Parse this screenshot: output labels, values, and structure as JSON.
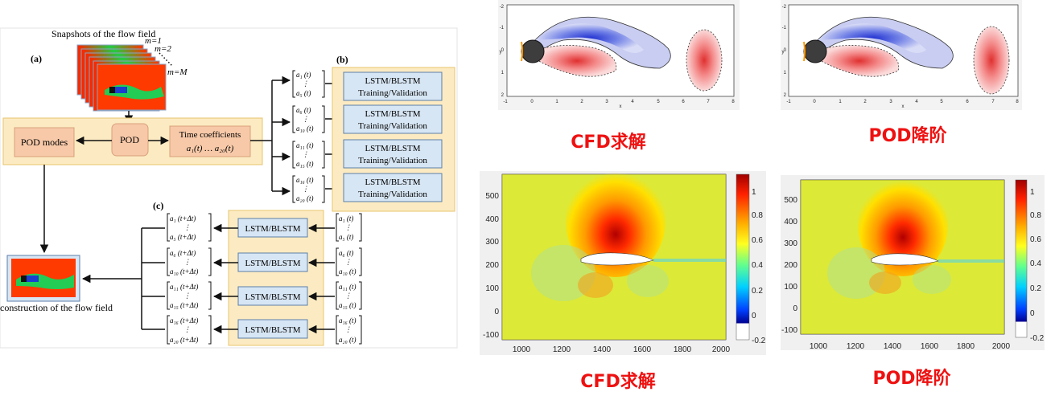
{
  "diagram": {
    "snapshots_title": "Snapshots of the flow field",
    "m_labels": [
      "m=1",
      "m=2",
      "m=M"
    ],
    "label_a": "(a)",
    "label_b": "(b)",
    "label_c": "(c)",
    "pod_modes": "POD modes",
    "pod": "POD",
    "time_coeff_line1": "Time coefficients",
    "time_coeff_line2": "a₁(t)  …  a₂₀(t)",
    "lstm_train_line1": "LSTM/BLSTM",
    "lstm_train_line2": "Training/Validation",
    "lstm": "LSTM/BLSTM",
    "reconstruction_label": "construction of the flow field",
    "vectors_t": [
      {
        "top": "a₁ (t)",
        "bottom": "a₅ (t)"
      },
      {
        "top": "a₆ (t)",
        "bottom": "a₁₀ (t)"
      },
      {
        "top": "a₁₁ (t)",
        "bottom": "a₁₅ (t)"
      },
      {
        "top": "a₁₆ (t)",
        "bottom": "a₂₀ (t)"
      }
    ],
    "vectors_dt": [
      {
        "top": "a₁ (t+Δt)",
        "bottom": "a₅ (t+Δt)"
      },
      {
        "top": "a₆ (t+Δt)",
        "bottom": "a₁₀ (t+Δt)"
      },
      {
        "top": "a₁₁ (t+Δt)",
        "bottom": "a₁₅ (t+Δt)"
      },
      {
        "top": "a₁₆ (t+Δt)",
        "bottom": "a₂₀ (t+Δt)"
      }
    ],
    "colors": {
      "band": "#fcebc2",
      "band_border": "#e8c46d",
      "pod_box": "#f7c9a8",
      "lstm_box": "#d7e6f4",
      "lstm_border": "#5b7fa8"
    }
  },
  "captions": {
    "cfd_top": "CFD求解",
    "pod_top": "POD降阶",
    "cfd_bottom": "CFD求解",
    "pod_bottom": "POD降阶"
  },
  "plots": {
    "cylinder_x_ticks": [
      "-1",
      "0",
      "1",
      "2",
      "3",
      "4",
      "5",
      "6",
      "7",
      "8"
    ],
    "cylinder_y_ticks": [
      "-2",
      "-1",
      "0",
      "1",
      "2"
    ],
    "cylinder_x_label": "x",
    "cylinder_y_label": "y",
    "airfoil_x_ticks": [
      "1000",
      "1200",
      "1400",
      "1600",
      "1800",
      "2000"
    ],
    "airfoil_y_ticks": [
      "500",
      "400",
      "300",
      "200",
      "100",
      "0",
      "-100"
    ],
    "colorbar_ticks": [
      "1",
      "0.8",
      "0.6",
      "0.4",
      "0.2",
      "0",
      "-0.2"
    ]
  }
}
